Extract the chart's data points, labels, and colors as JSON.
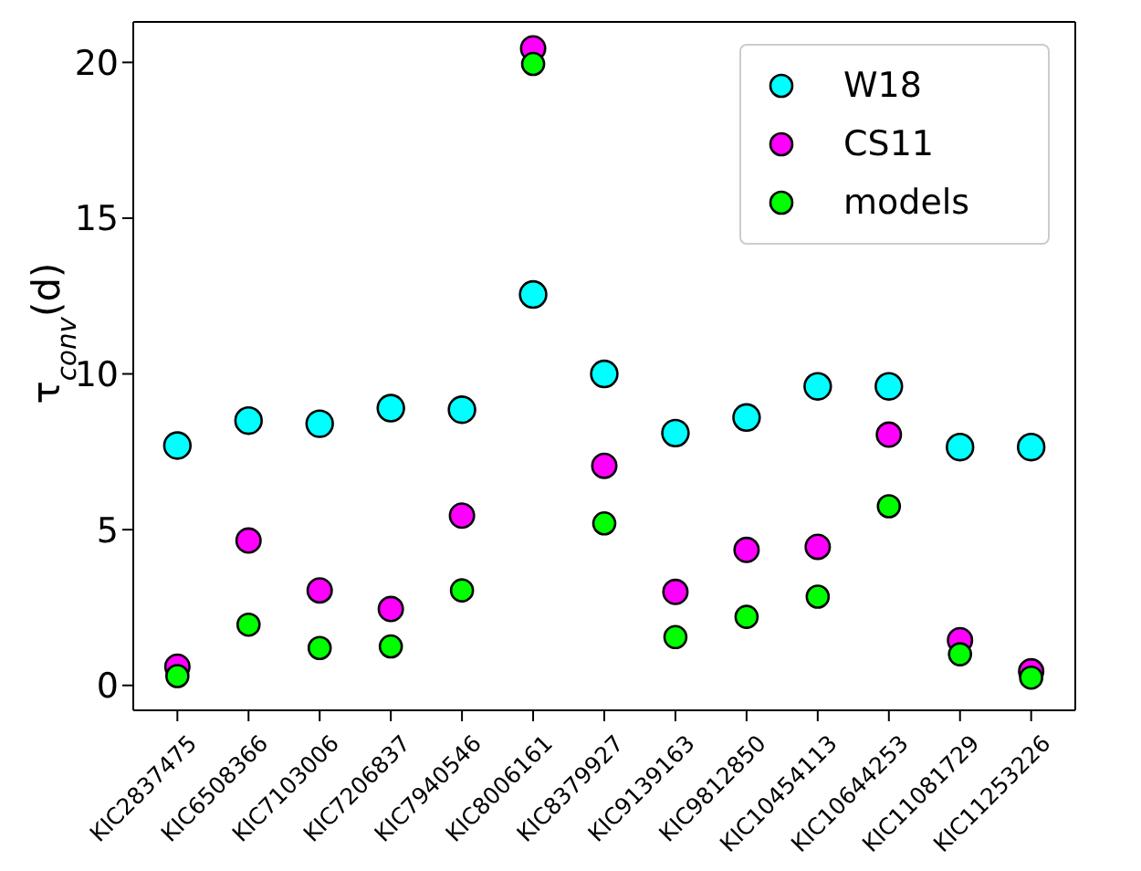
{
  "chart_data": {
    "type": "scatter",
    "ylabel": "τ$_{conv}$(d)",
    "categories": [
      "KIC2837475",
      "KIC6508366",
      "KIC7103006",
      "KIC7206837",
      "KIC7940546",
      "KIC8006161",
      "KIC8379927",
      "KIC9139163",
      "KIC9812850",
      "KIC10454113",
      "KIC10644253",
      "KIC11081729",
      "KIC11253226"
    ],
    "series": [
      {
        "name": "W18",
        "color": "#00ffff",
        "values": [
          7.7,
          8.5,
          8.4,
          8.9,
          8.85,
          12.55,
          10.0,
          8.1,
          8.6,
          9.6,
          9.6,
          7.65,
          7.65
        ]
      },
      {
        "name": "CS11",
        "color": "#ff00ff",
        "values": [
          0.6,
          4.65,
          3.05,
          2.45,
          5.45,
          20.45,
          7.05,
          3.0,
          4.35,
          4.45,
          8.05,
          1.45,
          0.45
        ]
      },
      {
        "name": "models",
        "color": "#00ff00",
        "values": [
          0.3,
          1.95,
          1.2,
          1.25,
          3.05,
          19.95,
          5.2,
          1.55,
          2.2,
          2.85,
          5.75,
          1.0,
          0.25
        ]
      }
    ],
    "ylim": [
      -0.8,
      21.3
    ],
    "yticks": [
      0,
      5,
      10,
      15,
      20
    ],
    "legend": "top right",
    "marker": "circle"
  }
}
